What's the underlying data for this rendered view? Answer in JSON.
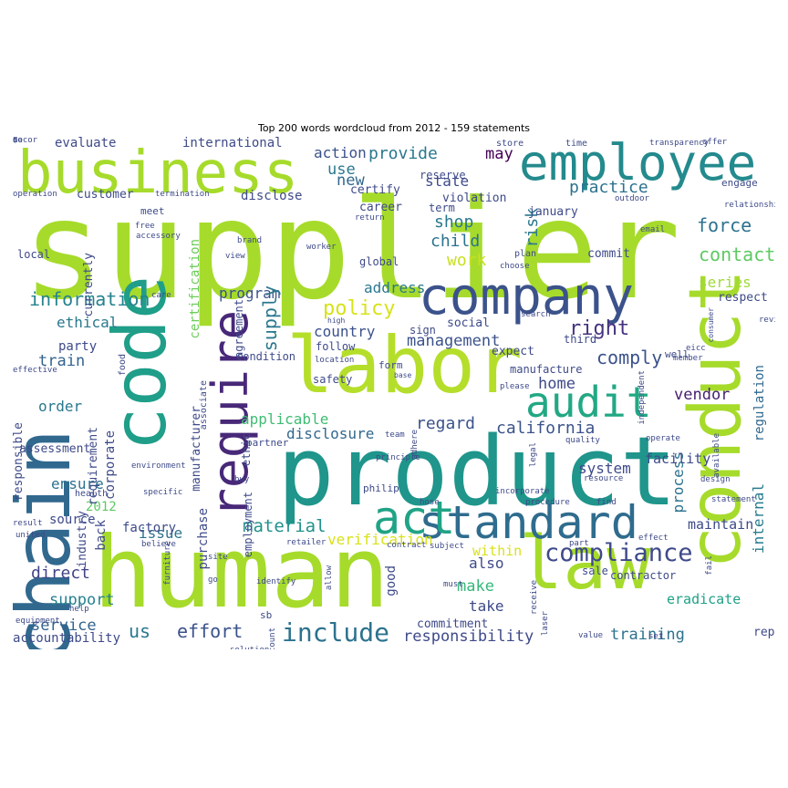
{
  "title": "Top 200 words wordcloud from 2012 - 159 statements",
  "palette": "viridis",
  "words": [
    {
      "text": "supplier",
      "color": "#a6db2b",
      "vertical": false
    },
    {
      "text": "product",
      "color": "#1f958b",
      "vertical": false
    },
    {
      "text": "human",
      "color": "#a6db2b",
      "vertical": false
    },
    {
      "text": "business",
      "color": "#a6db2b",
      "vertical": false
    },
    {
      "text": "employee",
      "color": "#238a8d",
      "vertical": false
    },
    {
      "text": "company",
      "color": "#3b528b",
      "vertical": false
    },
    {
      "text": "labor",
      "color": "#b5de2b",
      "vertical": false
    },
    {
      "text": "chain",
      "color": "#31688e",
      "vertical": true
    },
    {
      "text": "code",
      "color": "#1f9e89",
      "vertical": true
    },
    {
      "text": "conduct",
      "color": "#a6db2b",
      "vertical": true
    },
    {
      "text": "law",
      "color": "#a6db2b",
      "vertical": false
    },
    {
      "text": "standard",
      "color": "#2f6c8e",
      "vertical": false
    },
    {
      "text": "audit",
      "color": "#22a884",
      "vertical": false
    },
    {
      "text": "act",
      "color": "#20a386",
      "vertical": false
    },
    {
      "text": "require",
      "color": "#482878",
      "vertical": true
    },
    {
      "text": "include",
      "color": "#2c728e",
      "vertical": false
    },
    {
      "text": "compliance",
      "color": "#3e4a89",
      "vertical": false
    },
    {
      "text": "policy",
      "color": "#d8e219",
      "vertical": false
    },
    {
      "text": "right",
      "color": "#46327e",
      "vertical": false
    },
    {
      "text": "information",
      "color": "#26828e",
      "vertical": false
    },
    {
      "text": "effort",
      "color": "#3b528b",
      "vertical": false
    },
    {
      "text": "responsibility",
      "color": "#3e4a89",
      "vertical": false
    },
    {
      "text": "service",
      "color": "#33638d",
      "vertical": false
    },
    {
      "text": "vendor",
      "color": "#482071",
      "vertical": false
    },
    {
      "text": "applicable",
      "color": "#3fbc73",
      "vertical": false
    },
    {
      "text": "disclosure",
      "color": "#31688e",
      "vertical": false
    },
    {
      "text": "direct",
      "color": "#414487",
      "vertical": false
    },
    {
      "text": "support",
      "color": "#26828e",
      "vertical": false
    },
    {
      "text": "force",
      "color": "#2c728e",
      "vertical": false
    },
    {
      "text": "contact",
      "color": "#5ec962",
      "vertical": false
    },
    {
      "text": "comply",
      "color": "#3b528b",
      "vertical": false
    },
    {
      "text": "management",
      "color": "#3b528b",
      "vertical": false
    },
    {
      "text": "regard",
      "color": "#3b528b",
      "vertical": false
    },
    {
      "text": "california",
      "color": "#3b528b",
      "vertical": false
    },
    {
      "text": "material",
      "color": "#21918c",
      "vertical": false
    },
    {
      "text": "verification",
      "color": "#d8e219",
      "vertical": false
    },
    {
      "text": "make",
      "color": "#35b779",
      "vertical": false
    },
    {
      "text": "training",
      "color": "#2c728e",
      "vertical": false
    },
    {
      "text": "provide",
      "color": "#2a788e",
      "vertical": false
    },
    {
      "text": "practice",
      "color": "#2c728e",
      "vertical": false
    },
    {
      "text": "state",
      "color": "#3e4a89",
      "vertical": false
    },
    {
      "text": "shop",
      "color": "#2a788e",
      "vertical": false
    },
    {
      "text": "child",
      "color": "#2c728e",
      "vertical": false
    },
    {
      "text": "work",
      "color": "#c8e020",
      "vertical": false
    },
    {
      "text": "address",
      "color": "#2a788e",
      "vertical": false
    },
    {
      "text": "country",
      "color": "#3b528b",
      "vertical": false
    },
    {
      "text": "program",
      "color": "#3b528b",
      "vertical": false
    },
    {
      "text": "supply",
      "color": "#2a788e",
      "vertical": true
    },
    {
      "text": "train",
      "color": "#33638d",
      "vertical": false
    },
    {
      "text": "order",
      "color": "#2a788e",
      "vertical": false
    },
    {
      "text": "ethical",
      "color": "#2a788e",
      "vertical": false
    },
    {
      "text": "ensure",
      "color": "#2c728e",
      "vertical": false
    },
    {
      "text": "issue",
      "color": "#2c728e",
      "vertical": false
    },
    {
      "text": "us",
      "color": "#2a788e",
      "vertical": false
    },
    {
      "text": "new",
      "color": "#31688e",
      "vertical": false
    },
    {
      "text": "use",
      "color": "#2a788e",
      "vertical": false
    },
    {
      "text": "action",
      "color": "#3b528b",
      "vertical": false
    },
    {
      "text": "may",
      "color": "#440154",
      "vertical": false
    },
    {
      "text": "risk",
      "color": "#2a788e",
      "vertical": true
    },
    {
      "text": "series",
      "color": "#a0da39",
      "vertical": false
    },
    {
      "text": "process",
      "color": "#2c728e",
      "vertical": true
    },
    {
      "text": "internal",
      "color": "#287c8e",
      "vertical": true
    },
    {
      "text": "regulation",
      "color": "#31688e",
      "vertical": true
    },
    {
      "text": "certification",
      "color": "#6ccd5a",
      "vertical": true
    },
    {
      "text": "home",
      "color": "#3e4a89",
      "vertical": false
    },
    {
      "text": "also",
      "color": "#3e4a89",
      "vertical": false
    },
    {
      "text": "take",
      "color": "#3e4a89",
      "vertical": false
    },
    {
      "text": "system",
      "color": "#3e4a89",
      "vertical": false
    },
    {
      "text": "facility",
      "color": "#3e4a89",
      "vertical": false
    },
    {
      "text": "within",
      "color": "#d8e219",
      "vertical": false
    },
    {
      "text": "good",
      "color": "#3e4a89",
      "vertical": true
    },
    {
      "text": "commitment",
      "color": "#3e4a89",
      "vertical": false
    },
    {
      "text": "eradicate",
      "color": "#1fa187",
      "vertical": false
    },
    {
      "text": "maintain",
      "color": "#3e4a89",
      "vertical": false
    },
    {
      "text": "accountability",
      "color": "#3e4a89",
      "vertical": false
    },
    {
      "text": "manufacturer",
      "color": "#3e4a89",
      "vertical": true
    },
    {
      "text": "purchase",
      "color": "#3e4a89",
      "vertical": true
    },
    {
      "text": "corporate",
      "color": "#3e4a89",
      "vertical": true
    },
    {
      "text": "back",
      "color": "#3e4a89",
      "vertical": true
    },
    {
      "text": "factory",
      "color": "#3e4a89",
      "vertical": false
    },
    {
      "text": "source",
      "color": "#3e4a89",
      "vertical": false
    },
    {
      "text": "2012",
      "color": "#5ec962",
      "vertical": false
    },
    {
      "text": "industry",
      "color": "#3e4a89",
      "vertical": true
    },
    {
      "text": "assessment",
      "color": "#3e4a89",
      "vertical": false
    },
    {
      "text": "responsible",
      "color": "#3e4a89",
      "vertical": true
    },
    {
      "text": "requirement",
      "color": "#3e4a89",
      "vertical": true
    },
    {
      "text": "party",
      "color": "#3e4a89",
      "vertical": false
    },
    {
      "text": "evaluate",
      "color": "#3e4a89",
      "vertical": false
    },
    {
      "text": "international",
      "color": "#3e4a89",
      "vertical": false
    },
    {
      "text": "disclose",
      "color": "#3e4a89",
      "vertical": false
    },
    {
      "text": "customer",
      "color": "#3e4a89",
      "vertical": false
    },
    {
      "text": "certify",
      "color": "#3e4a89",
      "vertical": false
    },
    {
      "text": "violation",
      "color": "#3e4a89",
      "vertical": false
    },
    {
      "text": "january",
      "color": "#3e4a89",
      "vertical": false
    },
    {
      "text": "career",
      "color": "#3e4a89",
      "vertical": false
    },
    {
      "text": "reserve",
      "color": "#3e4a89",
      "vertical": false
    },
    {
      "text": "term",
      "color": "#3e4a89",
      "vertical": false
    },
    {
      "text": "engage",
      "color": "#3e4a89",
      "vertical": false
    },
    {
      "text": "commit",
      "color": "#3e4a89",
      "vertical": false
    },
    {
      "text": "global",
      "color": "#3e4a89",
      "vertical": false
    },
    {
      "text": "local",
      "color": "#3e4a89",
      "vertical": false
    },
    {
      "text": "currently",
      "color": "#3e4a89",
      "vertical": true
    },
    {
      "text": "agreement",
      "color": "#3e4a89",
      "vertical": true
    },
    {
      "text": "sign",
      "color": "#3e4a89",
      "vertical": false
    },
    {
      "text": "social",
      "color": "#3e4a89",
      "vertical": false
    },
    {
      "text": "follow",
      "color": "#3e4a89",
      "vertical": false
    },
    {
      "text": "expect",
      "color": "#3e4a89",
      "vertical": false
    },
    {
      "text": "manufacture",
      "color": "#3e4a89",
      "vertical": false
    },
    {
      "text": "third",
      "color": "#3e4a89",
      "vertical": false
    },
    {
      "text": "respect",
      "color": "#3e4a89",
      "vertical": false
    },
    {
      "text": "well",
      "color": "#3e4a89",
      "vertical": false
    },
    {
      "text": "sale",
      "color": "#3e4a89",
      "vertical": false
    },
    {
      "text": "contractor",
      "color": "#3e4a89",
      "vertical": false
    },
    {
      "text": "report",
      "color": "#3e4a89",
      "vertical": false
    },
    {
      "text": "condition",
      "color": "#3e4a89",
      "vertical": false
    },
    {
      "text": "partner",
      "color": "#3e4a89",
      "vertical": false
    },
    {
      "text": "ethic",
      "color": "#3e4a89",
      "vertical": true
    },
    {
      "text": "employment",
      "color": "#3e4a89",
      "vertical": true
    },
    {
      "text": "safety",
      "color": "#3e4a89",
      "vertical": false
    },
    {
      "text": "form",
      "color": "#3e4a89",
      "vertical": false
    },
    {
      "text": "sb",
      "color": "#3e4a89",
      "vertical": false
    },
    {
      "text": "meet",
      "color": "#3e4a89",
      "vertical": false
    },
    {
      "text": "food",
      "color": "#3e4a89",
      "vertical": true
    },
    {
      "text": "store",
      "color": "#3e4a89",
      "vertical": false
    },
    {
      "text": "time",
      "color": "#3e4a89",
      "vertical": false
    },
    {
      "text": "transparency",
      "color": "#3e4a89",
      "vertical": false
    },
    {
      "text": "offer",
      "color": "#3e4a89",
      "vertical": false
    },
    {
      "text": "operation",
      "color": "#3e4a89",
      "vertical": false
    },
    {
      "text": "termination",
      "color": "#3e4a89",
      "vertical": false
    },
    {
      "text": "outdoor",
      "color": "#3e4a89",
      "vertical": false
    },
    {
      "text": "relationship",
      "color": "#3e4a89",
      "vertical": false
    },
    {
      "text": "return",
      "color": "#3e4a89",
      "vertical": false
    },
    {
      "text": "free",
      "color": "#3e4a89",
      "vertical": false
    },
    {
      "text": "accessory",
      "color": "#3e4a89",
      "vertical": false
    },
    {
      "text": "brand",
      "color": "#3e4a89",
      "vertical": false
    },
    {
      "text": "view",
      "color": "#3e4a89",
      "vertical": false
    },
    {
      "text": "worker",
      "color": "#3e4a89",
      "vertical": false
    },
    {
      "text": "email",
      "color": "#3e4a89",
      "vertical": false
    },
    {
      "text": "plan",
      "color": "#3e4a89",
      "vertical": false
    },
    {
      "text": "choose",
      "color": "#3e4a89",
      "vertical": false
    },
    {
      "text": "consumer",
      "color": "#3e4a89",
      "vertical": true
    },
    {
      "text": "review",
      "color": "#3e4a89",
      "vertical": false
    },
    {
      "text": "eicc",
      "color": "#3e4a89",
      "vertical": false
    },
    {
      "text": "member",
      "color": "#3e4a89",
      "vertical": false
    },
    {
      "text": "independent",
      "color": "#3e4a89",
      "vertical": true
    },
    {
      "text": "search",
      "color": "#3e4a89",
      "vertical": false
    },
    {
      "text": "care",
      "color": "#3e4a89",
      "vertical": false
    },
    {
      "text": "high",
      "color": "#3e4a89",
      "vertical": false
    },
    {
      "text": "location",
      "color": "#3e4a89",
      "vertical": false
    },
    {
      "text": "associate",
      "color": "#3e4a89",
      "vertical": true
    },
    {
      "text": "effective",
      "color": "#3e4a89",
      "vertical": false
    },
    {
      "text": "base",
      "color": "#3e4a89",
      "vertical": false
    },
    {
      "text": "please",
      "color": "#3e4a89",
      "vertical": false
    },
    {
      "text": "team",
      "color": "#3e4a89",
      "vertical": false
    },
    {
      "text": "adhere",
      "color": "#3e4a89",
      "vertical": true
    },
    {
      "text": "legal",
      "color": "#3e4a89",
      "vertical": true
    },
    {
      "text": "quality",
      "color": "#3e4a89",
      "vertical": false
    },
    {
      "text": "operate",
      "color": "#3e4a89",
      "vertical": false
    },
    {
      "text": "available",
      "color": "#3e4a89",
      "vertical": true
    },
    {
      "text": "environment",
      "color": "#3e4a89",
      "vertical": false
    },
    {
      "text": "principle",
      "color": "#3e4a89",
      "vertical": false
    },
    {
      "text": "buy",
      "color": "#3e4a89",
      "vertical": false
    },
    {
      "text": "resource",
      "color": "#3e4a89",
      "vertical": false
    },
    {
      "text": "design",
      "color": "#3e4a89",
      "vertical": false
    },
    {
      "text": "health",
      "color": "#3e4a89",
      "vertical": false
    },
    {
      "text": "specific",
      "color": "#3e4a89",
      "vertical": false
    },
    {
      "text": "hose",
      "color": "#3e4a89",
      "vertical": false
    },
    {
      "text": "procedure",
      "color": "#3e4a89",
      "vertical": false
    },
    {
      "text": "find",
      "color": "#3e4a89",
      "vertical": false
    },
    {
      "text": "statement",
      "color": "#3e4a89",
      "vertical": false
    },
    {
      "text": "result",
      "color": "#3e4a89",
      "vertical": false
    },
    {
      "text": "believe",
      "color": "#3e4a89",
      "vertical": false
    },
    {
      "text": "retailer",
      "color": "#3e4a89",
      "vertical": false
    },
    {
      "text": "subject",
      "color": "#3e4a89",
      "vertical": false
    },
    {
      "text": "incorporate",
      "color": "#3e4a89",
      "vertical": false
    },
    {
      "text": "effect",
      "color": "#3e4a89",
      "vertical": false
    },
    {
      "text": "united",
      "color": "#3e4a89",
      "vertical": false
    },
    {
      "text": "furniture",
      "color": "#3e4a89",
      "vertical": true
    },
    {
      "text": "site",
      "color": "#3e4a89",
      "vertical": false
    },
    {
      "text": "allow",
      "color": "#3e4a89",
      "vertical": true
    },
    {
      "text": "fail",
      "color": "#3e4a89",
      "vertical": true
    },
    {
      "text": "go",
      "color": "#3e4a89",
      "vertical": false
    },
    {
      "text": "identify",
      "color": "#3e4a89",
      "vertical": false
    },
    {
      "text": "must",
      "color": "#3e4a89",
      "vertical": false
    },
    {
      "text": "receive",
      "color": "#3e4a89",
      "vertical": true
    },
    {
      "text": "laser",
      "color": "#3e4a89",
      "vertical": true
    },
    {
      "text": "help",
      "color": "#3e4a89",
      "vertical": false
    },
    {
      "text": "equipment",
      "color": "#3e4a89",
      "vertical": false
    },
    {
      "text": "account",
      "color": "#3e4a89",
      "vertical": true
    },
    {
      "text": "solution",
      "color": "#3e4a89",
      "vertical": false
    },
    {
      "text": "control",
      "color": "#3e4a89",
      "vertical": false
    },
    {
      "text": "value",
      "color": "#3e4a89",
      "vertical": false
    },
    {
      "text": "set",
      "color": "#3e4a89",
      "vertical": false
    },
    {
      "text": "contract",
      "color": "#3e4a89",
      "vertical": false
    },
    {
      "text": "part",
      "color": "#3e4a89",
      "vertical": false
    },
    {
      "text": "philip",
      "color": "#3e4a89",
      "vertical": false
    },
    {
      "text": "decor",
      "color": "#3e4a89",
      "vertical": false
    },
    {
      "text": "ho",
      "color": "#3e4a89",
      "vertical": false
    },
    {
      "text": "de",
      "color": "#3e4a89",
      "vertical": false
    },
    {
      "text": "$",
      "color": "#3e4a89",
      "vertical": false
    }
  ]
}
